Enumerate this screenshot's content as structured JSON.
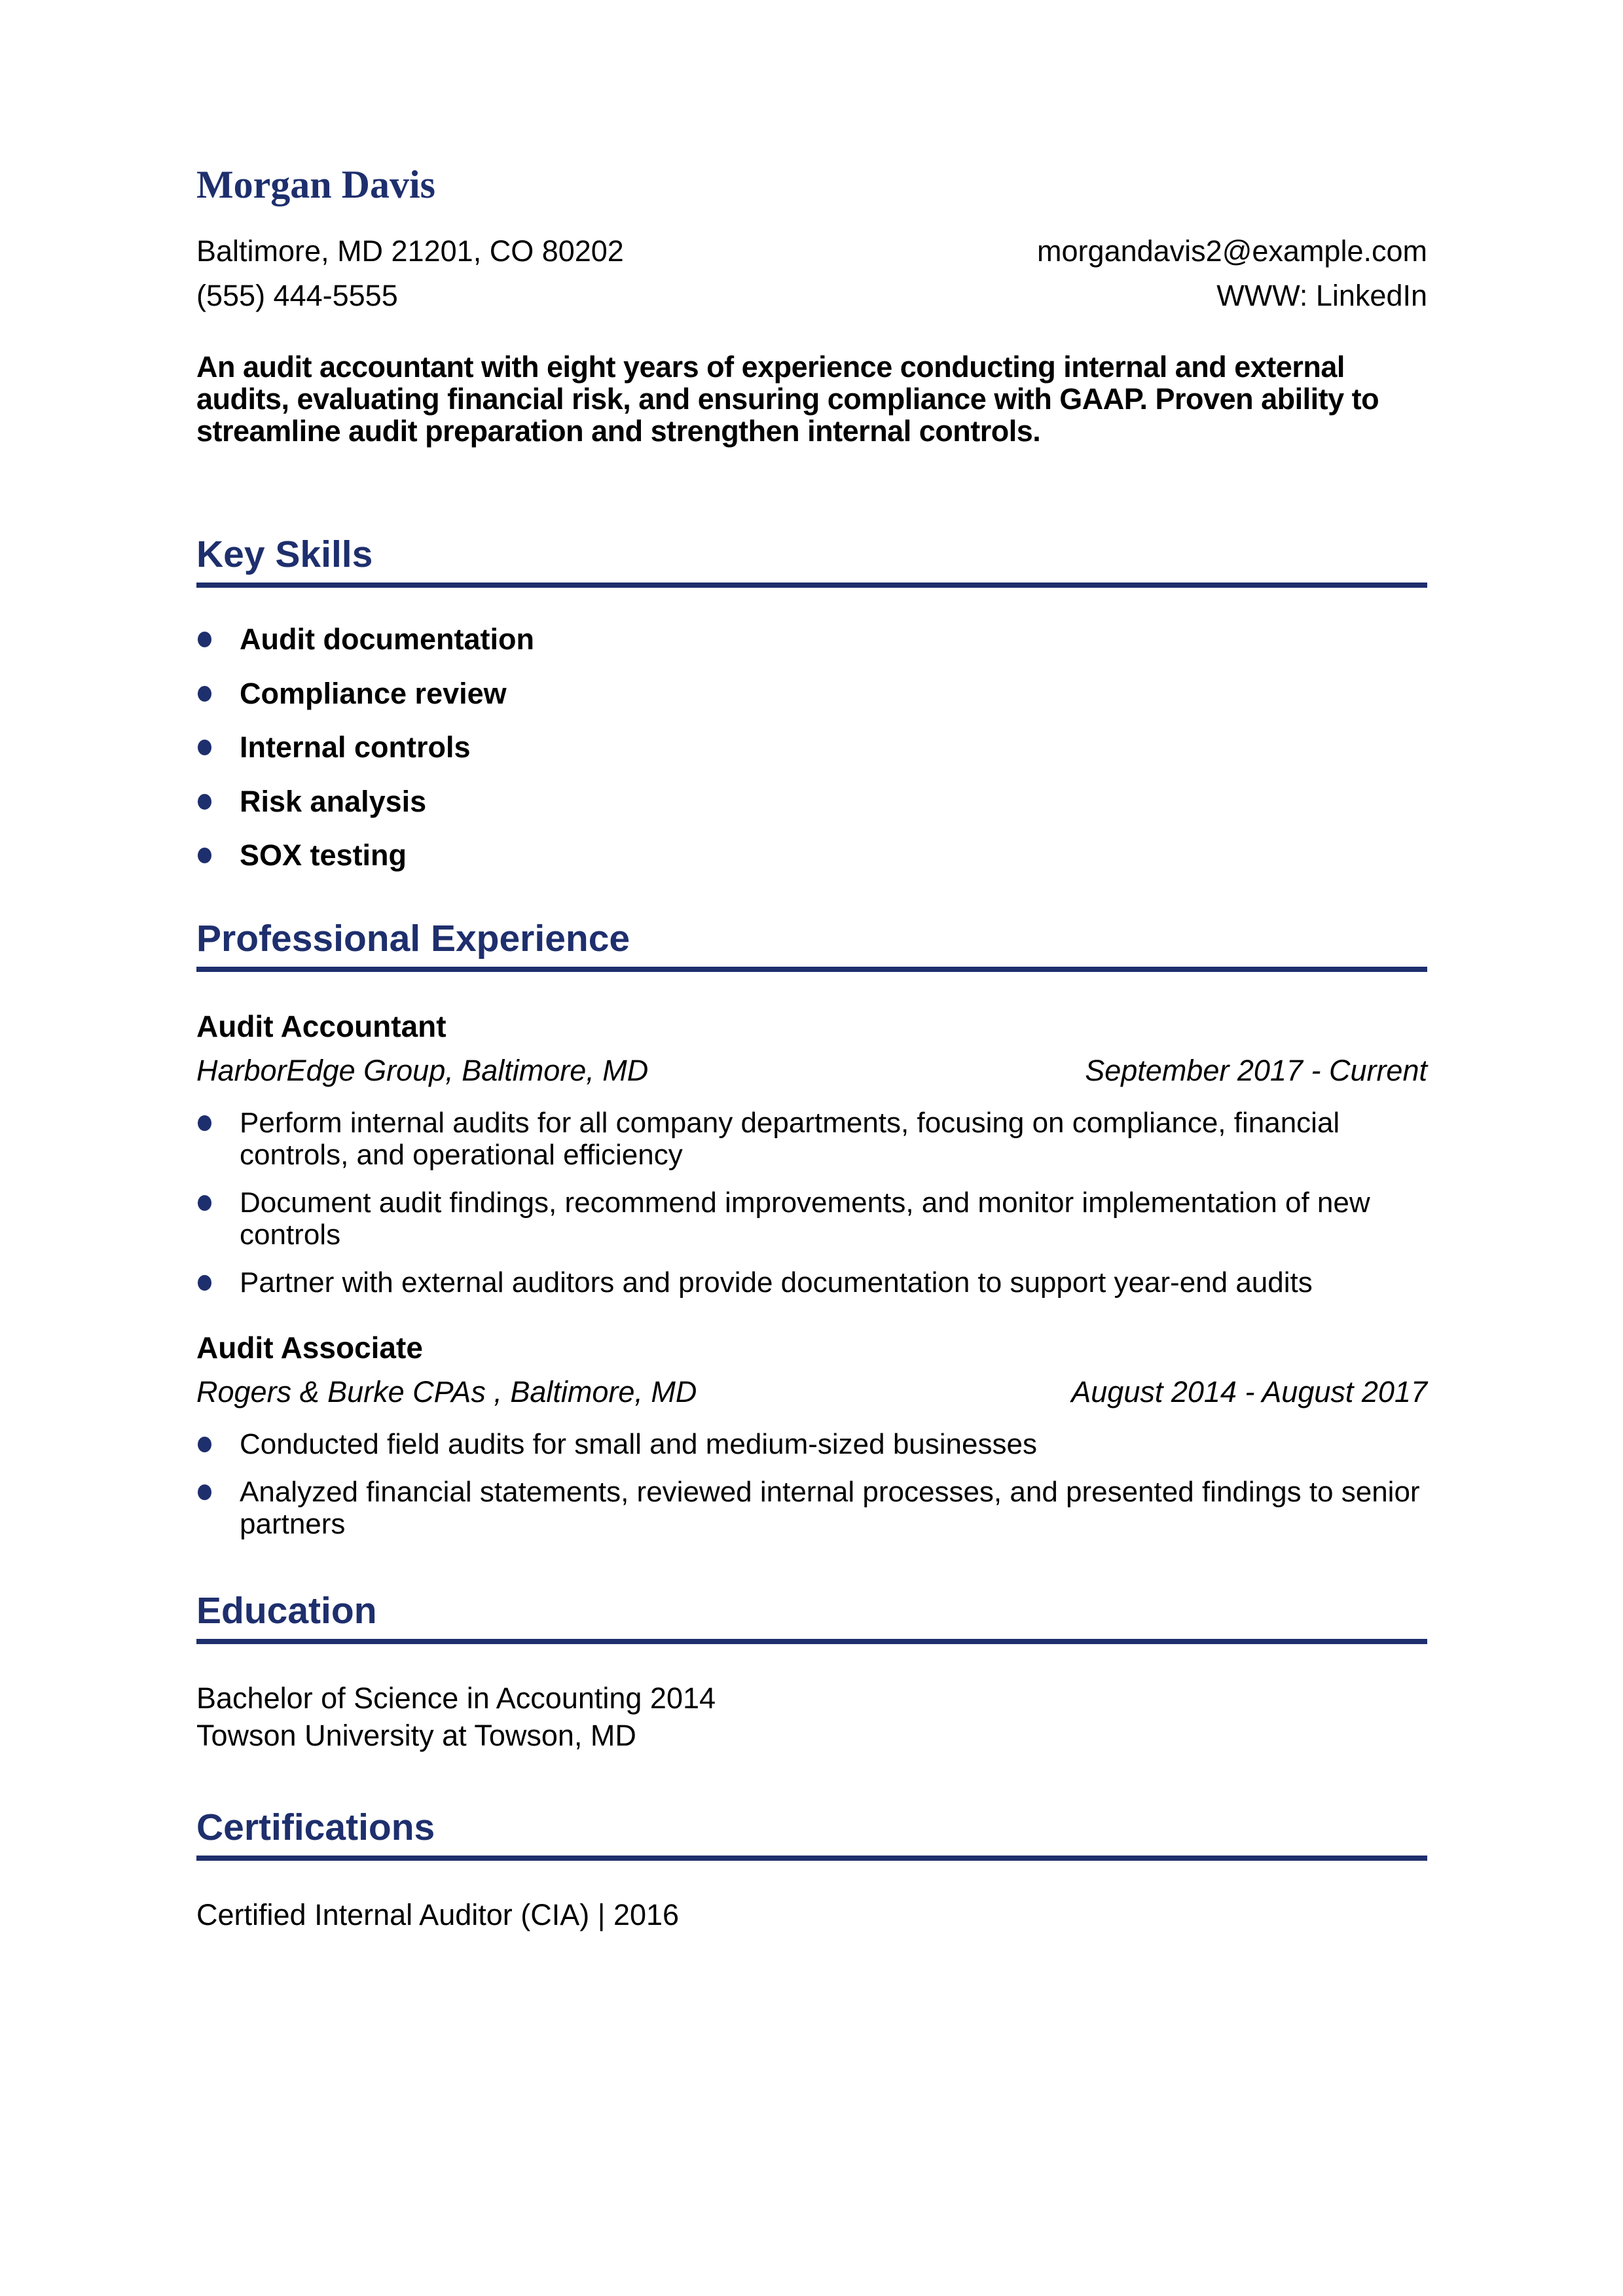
{
  "page": {
    "background_color": "#ffffff",
    "accent_color": "#1e2f6d",
    "text_color": "#000000"
  },
  "header": {
    "name": "Morgan Davis",
    "address": "Baltimore, MD 21201, CO 80202",
    "phone": "(555) 444-5555",
    "email": "morgandavis2@example.com",
    "website": "WWW: LinkedIn"
  },
  "summary": "An audit accountant with eight years of experience conducting internal and external audits, evaluating financial risk, and ensuring compliance with GAAP. Proven ability to streamline audit preparation and strengthen internal controls.",
  "key_skills": {
    "title": "Key Skills",
    "items": [
      "Audit documentation",
      "Compliance review",
      "Internal controls",
      "Risk analysis",
      "SOX testing"
    ]
  },
  "experience": {
    "title": "Professional Experience",
    "jobs": [
      {
        "role": "Audit Accountant",
        "company": "HarborEdge Group, Baltimore, MD",
        "dates": "September 2017 - Current",
        "bullets": [
          "Perform internal audits for all company departments, focusing on compliance, financial controls, and operational efficiency",
          "Document audit findings, recommend improvements, and monitor implementation of new controls",
          "Partner with external auditors and provide documentation to support year-end audits"
        ]
      },
      {
        "role": "Audit Associate",
        "company": "Rogers & Burke CPAs , Baltimore, MD",
        "dates": "August 2014 - August 2017",
        "bullets": [
          "Conducted field audits for small and medium-sized businesses",
          "Analyzed financial statements, reviewed internal processes, and presented findings to senior partners"
        ]
      }
    ]
  },
  "education": {
    "title": "Education",
    "degree": "Bachelor of Science in Accounting 2014",
    "school": "Towson University at Towson, MD"
  },
  "certifications": {
    "title": "Certifications",
    "items": [
      "Certified Internal Auditor (CIA) | 2016"
    ]
  }
}
